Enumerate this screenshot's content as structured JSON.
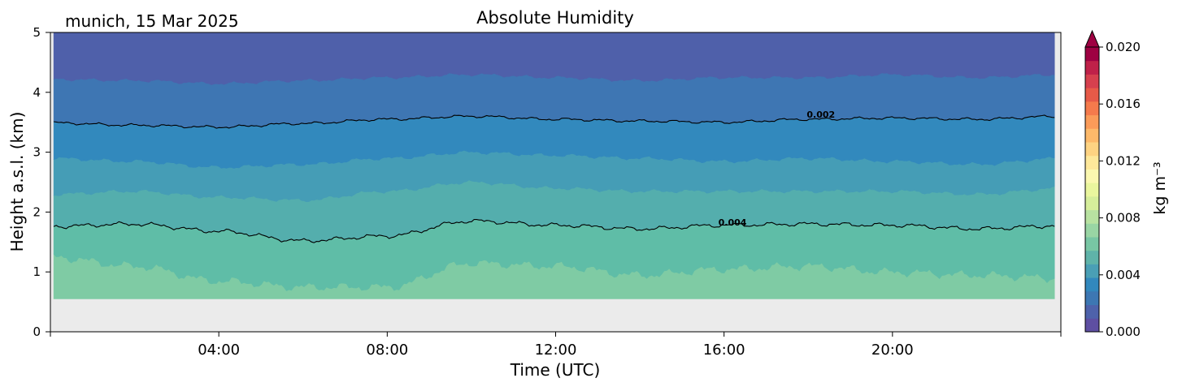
{
  "chart_data": {
    "type": "heatmap",
    "title": "Absolute Humidity",
    "subtitle": "munich, 15 Mar 2025",
    "xlabel": "Time (UTC)",
    "ylabel": "Height a.s.l. (km)",
    "xlim": [
      0,
      24
    ],
    "ylim": [
      0,
      5
    ],
    "x_ticks": [
      {
        "value": 4,
        "label": "04:00"
      },
      {
        "value": 8,
        "label": "08:00"
      },
      {
        "value": 12,
        "label": "12:00"
      },
      {
        "value": 16,
        "label": "16:00"
      },
      {
        "value": 20,
        "label": "20:00"
      }
    ],
    "y_ticks": [
      {
        "value": 0,
        "label": "0"
      },
      {
        "value": 1,
        "label": "1"
      },
      {
        "value": 2,
        "label": "2"
      },
      {
        "value": 3,
        "label": "3"
      },
      {
        "value": 4,
        "label": "4"
      },
      {
        "value": 5,
        "label": "5"
      }
    ],
    "data_bottom_km": 0.55,
    "missing_color": "#ebebeb",
    "fill_levels": [
      {
        "min_value": 0.005,
        "color": "#7fcba4"
      },
      {
        "min_value": 0.004,
        "color": "#5fbda7"
      },
      {
        "min_value": 0.0035,
        "color": "#54aead"
      },
      {
        "min_value": 0.003,
        "color": "#459db6"
      },
      {
        "min_value": 0.002,
        "color": "#3289bd"
      },
      {
        "min_value": 0.0015,
        "color": "#3e76b3"
      },
      {
        "min_value": 0.001,
        "color": "#4f60aa"
      }
    ],
    "band_boundaries_km": {
      "time_h": [
        0,
        2,
        4,
        6,
        8,
        10,
        12,
        14,
        16,
        18,
        20,
        22,
        24
      ],
      "lightest_top": [
        1.25,
        1.1,
        0.85,
        0.75,
        0.75,
        1.15,
        1.1,
        0.95,
        1.05,
        1.1,
        1.0,
        0.95,
        0.9
      ],
      "contour_0_004": [
        1.76,
        1.8,
        1.68,
        1.52,
        1.6,
        1.85,
        1.78,
        1.72,
        1.78,
        1.8,
        1.78,
        1.72,
        1.77
      ],
      "band_2_top": [
        2.3,
        2.35,
        2.25,
        2.2,
        2.35,
        2.5,
        2.4,
        2.35,
        2.35,
        2.35,
        2.35,
        2.3,
        2.4
      ],
      "band_3_top": [
        2.9,
        2.85,
        2.75,
        2.8,
        2.9,
        3.0,
        2.95,
        2.9,
        2.85,
        2.9,
        2.85,
        2.8,
        2.9
      ],
      "contour_0_002": [
        3.49,
        3.45,
        3.42,
        3.48,
        3.55,
        3.6,
        3.55,
        3.52,
        3.5,
        3.55,
        3.57,
        3.55,
        3.6
      ],
      "band_5_top": [
        4.22,
        4.2,
        4.15,
        4.2,
        4.25,
        4.3,
        4.25,
        4.2,
        4.25,
        4.25,
        4.3,
        4.25,
        4.3
      ]
    },
    "contours": [
      {
        "level": 0.004,
        "label": "0.004",
        "label_x_h": 16.2,
        "label_y_km": 1.83
      },
      {
        "level": 0.002,
        "label": "0.002",
        "label_x_h": 18.3,
        "label_y_km": 3.63
      }
    ],
    "colorbar": {
      "label": "kg m⁻³",
      "min": 0.0,
      "max": 0.02,
      "extend": "max",
      "ticks": [
        {
          "value": 0.0,
          "label": "0.000"
        },
        {
          "value": 0.004,
          "label": "0.004"
        },
        {
          "value": 0.008,
          "label": "0.008"
        },
        {
          "value": 0.012,
          "label": "0.012"
        },
        {
          "value": 0.016,
          "label": "0.016"
        },
        {
          "value": 0.02,
          "label": "0.020"
        }
      ],
      "colors": [
        "#5e4fa2",
        "#4e62ab",
        "#3d77b3",
        "#3288bd",
        "#4a9fb5",
        "#5fb3a9",
        "#78c6a4",
        "#99d5a4",
        "#b8e2a1",
        "#d6ee9b",
        "#eaf69e",
        "#fbf8b0",
        "#fee89a",
        "#fed382",
        "#fdb96a",
        "#fb9b59",
        "#f57a4c",
        "#e75a48",
        "#d6404e",
        "#bf2149",
        "#9e0142"
      ]
    }
  }
}
